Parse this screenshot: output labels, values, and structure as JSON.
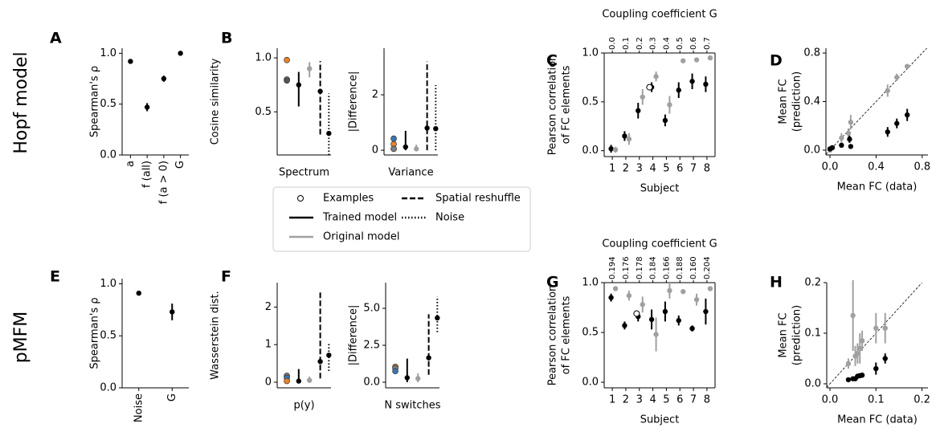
{
  "figure": {
    "row_labels": [
      "Hopf model",
      "pMFM"
    ],
    "legend": [
      {
        "label": "Examples",
        "marker": "open"
      },
      {
        "label": "Trained model",
        "color": "#000000",
        "linestyle": "solid"
      },
      {
        "label": "Original model",
        "color": "#a0a0a0",
        "linestyle": "solid"
      },
      {
        "label": "Spatial reshuffle",
        "color": "#000000",
        "linestyle": "dashed"
      },
      {
        "label": "Noise",
        "color": "#000000",
        "linestyle": "dotted"
      }
    ]
  },
  "chart_data": [
    {
      "type": "category",
      "panel": "A",
      "ylabel": "Spearman's ρ",
      "categories": [
        "a",
        "f (all)",
        "f (a > 0)",
        "G"
      ],
      "ylim": [
        0,
        1.05
      ],
      "yticks": [
        {
          "value": 0,
          "label": "0.0"
        },
        {
          "value": 0.5,
          "label": "0.5"
        },
        {
          "value": 1,
          "label": "1.0"
        }
      ],
      "series": [
        {
          "color": "#000000",
          "linestyle": "solid",
          "values": [
            0.92,
            0.47,
            0.75,
            1.0
          ],
          "errors": [
            0.01,
            0.04,
            0.03,
            0.005
          ]
        }
      ]
    },
    {
      "type": "comparison",
      "panel": "B",
      "ylabel": "Cosine similarity",
      "xlabel": "Spectrum",
      "ylim": [
        0.1,
        1.09
      ],
      "yticks": [
        {
          "value": 0.5,
          "label": "0.5"
        },
        {
          "value": 1,
          "label": "1.0"
        }
      ],
      "series": [
        {
          "marker": "filled",
          "colors": [
            "#e8822a",
            "#7f7f7f",
            "#555555"
          ],
          "values": [
            0.98,
            0.8,
            0.79
          ]
        },
        {
          "color": "#000000",
          "linestyle": "solid",
          "values": [
            0.75
          ],
          "errors": [
            [
              0.2,
              0.12
            ]
          ]
        },
        {
          "color": "#a0a0a0",
          "linestyle": "solid",
          "values": [
            0.9
          ],
          "errors": [
            [
              0.08,
              0.06
            ]
          ]
        },
        {
          "color": "#000000",
          "linestyle": "dashed",
          "values": [
            0.69
          ],
          "errors": [
            [
              0.4,
              0.28
            ]
          ]
        },
        {
          "color": "#000000",
          "linestyle": "dotted",
          "values": [
            0.3
          ],
          "errors": [
            [
              0.2,
              0.37
            ]
          ]
        }
      ]
    },
    {
      "type": "comparison",
      "ylabel": "|Difference|",
      "xlabel": "Variance",
      "ylim": [
        -0.17,
        3.68
      ],
      "yticks": [
        0,
        2
      ],
      "series": [
        {
          "marker": "filled",
          "colors": [
            "#3b75af",
            "#e8822a",
            "#7f7f7f"
          ],
          "values": [
            0.42,
            0.22,
            0.05
          ]
        },
        {
          "color": "#000000",
          "linestyle": "solid",
          "values": [
            0.12
          ],
          "errors": [
            [
              0.12,
              0.58
            ]
          ]
        },
        {
          "color": "#a0a0a0",
          "linestyle": "solid",
          "values": [
            0.05
          ],
          "errors": [
            [
              0.05,
              0.15
            ]
          ]
        },
        {
          "color": "#000000",
          "linestyle": "dashed",
          "values": [
            0.8
          ],
          "errors": [
            [
              0.8,
              2.4
            ]
          ]
        },
        {
          "color": "#000000",
          "linestyle": "dotted",
          "values": [
            0.78
          ],
          "errors": [
            [
              0.78,
              1.57
            ]
          ]
        }
      ]
    },
    {
      "type": "subject",
      "panel": "C",
      "ylabel": [
        "Pearson correlation",
        "of FC elements"
      ],
      "xlabel": "Subject",
      "top_label": "Coupling coefficient G",
      "top_categories": [
        "0.0",
        "0.1",
        "0.2",
        "0.3",
        "0.4",
        "0.5",
        "0.6",
        "0.7"
      ],
      "x": [
        1,
        2,
        3,
        4,
        5,
        6,
        7,
        8
      ],
      "xlim": [
        0.4,
        8.6
      ],
      "xticks": [
        1,
        2,
        3,
        4,
        5,
        6,
        7,
        8
      ],
      "ylim": [
        -0.06,
        1.0
      ],
      "yticks": [
        {
          "value": 0,
          "label": "0.0"
        },
        {
          "value": 0.5,
          "label": "0.5"
        },
        {
          "value": 1,
          "label": "1.0"
        }
      ],
      "series": [
        {
          "color": "#000000",
          "linestyle": "solid",
          "values": [
            0.02,
            0.15,
            0.41,
            0.65,
            0.31,
            0.62,
            0.71,
            0.68
          ],
          "errors": [
            0.04,
            0.05,
            0.08,
            0.05,
            0.06,
            0.08,
            0.08,
            0.08
          ]
        },
        {
          "color": "#a0a0a0",
          "linestyle": "solid",
          "values": [
            0.01,
            0.12,
            0.55,
            0.76,
            0.47,
            0.92,
            0.93,
            0.95
          ],
          "errors": [
            0.03,
            0.06,
            0.08,
            0.05,
            0.09,
            0.02,
            0.02,
            0.02
          ]
        },
        {
          "marker": "open",
          "x": [
            3.75
          ],
          "values": [
            0.65
          ]
        }
      ]
    },
    {
      "type": "scatter",
      "panel": "D",
      "ylabel": [
        "Mean FC",
        "(prediction)"
      ],
      "xlabel": "Mean FC (data)",
      "diagonal": true,
      "xlim": [
        -0.035,
        0.85
      ],
      "xticks": [
        {
          "value": 0,
          "label": "0.0"
        },
        0.4,
        0.8
      ],
      "ylim": [
        -0.04,
        0.84
      ],
      "yticks": [
        {
          "value": 0,
          "label": "0.0"
        },
        0.4,
        0.8
      ],
      "series": [
        {
          "color": "#a0a0a0",
          "x": [
            0.0,
            0.02,
            0.1,
            0.16,
            0.18,
            0.5,
            0.58,
            0.67
          ],
          "values": [
            0.0,
            0.02,
            0.1,
            0.14,
            0.23,
            0.49,
            0.6,
            0.69
          ],
          "errors": [
            0.005,
            0.01,
            0.04,
            0.04,
            0.06,
            0.05,
            0.03,
            0.02
          ]
        },
        {
          "color": "#000000",
          "x": [
            0.0,
            0.02,
            0.1,
            0.17,
            0.18,
            0.5,
            0.58,
            0.67
          ],
          "values": [
            0.01,
            0.02,
            0.04,
            0.09,
            0.03,
            0.15,
            0.22,
            0.29
          ],
          "errors": [
            0.005,
            0.01,
            0.02,
            0.03,
            0.015,
            0.04,
            0.04,
            0.05
          ]
        }
      ]
    },
    {
      "type": "category",
      "panel": "E",
      "ylabel": "Spearman's ρ",
      "categories": [
        "Noise",
        "G"
      ],
      "ylim": [
        0,
        1.05
      ],
      "yticks": [
        {
          "value": 0,
          "label": "0.0"
        },
        {
          "value": 0.5,
          "label": "0.5"
        },
        {
          "value": 1,
          "label": "1.0"
        }
      ],
      "series": [
        {
          "color": "#000000",
          "linestyle": "solid",
          "values": [
            0.91,
            0.73
          ],
          "errors": [
            0.01,
            0.08
          ]
        }
      ]
    },
    {
      "type": "comparison",
      "panel": "F",
      "ylabel": "Wasserstein dist.",
      "xlabel": "p(y)",
      "ylim": [
        -0.15,
        2.65
      ],
      "yticks": [
        0,
        1,
        2
      ],
      "series": [
        {
          "marker": "filled",
          "colors": [
            "#7f7f7f",
            "#3b75af",
            "#e8822a"
          ],
          "values": [
            0.17,
            0.12,
            0.03
          ]
        },
        {
          "color": "#000000",
          "linestyle": "solid",
          "values": [
            0.03
          ],
          "errors": [
            [
              0.03,
              0.32
            ]
          ]
        },
        {
          "color": "#a0a0a0",
          "linestyle": "solid",
          "values": [
            0.05
          ],
          "errors": [
            [
              0.05,
              0.1
            ]
          ]
        },
        {
          "color": "#000000",
          "linestyle": "dashed",
          "values": [
            0.55
          ],
          "errors": [
            [
              0.45,
              1.85
            ]
          ]
        },
        {
          "color": "#000000",
          "linestyle": "dotted",
          "values": [
            0.72
          ],
          "errors": [
            [
              0.42,
              0.3
            ]
          ]
        }
      ]
    },
    {
      "type": "comparison",
      "ylabel": "|Difference|",
      "xlabel": "N switches",
      "ylim": [
        -0.38,
        6.74
      ],
      "yticks": [
        {
          "value": 0,
          "label": "0.0"
        },
        2.5,
        {
          "value": 5,
          "label": "5.0"
        }
      ],
      "series": [
        {
          "marker": "filled",
          "colors": [
            "#e8822a",
            "#7f7f7f",
            "#3b75af"
          ],
          "values": [
            1.05,
            0.95,
            0.75
          ]
        },
        {
          "color": "#000000",
          "linestyle": "solid",
          "values": [
            0.3
          ],
          "errors": [
            [
              0.3,
              1.3
            ]
          ]
        },
        {
          "color": "#a0a0a0",
          "linestyle": "solid",
          "values": [
            0.25
          ],
          "errors": [
            [
              0.25,
              0.35
            ]
          ]
        },
        {
          "color": "#000000",
          "linestyle": "dashed",
          "values": [
            1.65
          ],
          "errors": [
            [
              1.15,
              2.95
            ]
          ]
        },
        {
          "color": "#000000",
          "linestyle": "dotted",
          "values": [
            4.35
          ],
          "errors": [
            [
              0.95,
              1.45
            ]
          ]
        }
      ]
    },
    {
      "type": "subject",
      "panel": "G",
      "ylabel": [
        "Pearson correlation",
        "of FC elements"
      ],
      "xlabel": "Subject",
      "top_label": "Coupling coefficient G",
      "top_categories": [
        "0.194",
        "0.176",
        "0.178",
        "0.184",
        "0.166",
        "0.188",
        "0.160",
        "0.204"
      ],
      "x": [
        1,
        2,
        3,
        4,
        5,
        6,
        7,
        8
      ],
      "xlim": [
        0.4,
        8.6
      ],
      "xticks": [
        1,
        2,
        3,
        4,
        5,
        6,
        7,
        8
      ],
      "ylim": [
        -0.056,
        1.0
      ],
      "yticks": [
        {
          "value": 0,
          "label": "0.0"
        },
        {
          "value": 0.5,
          "label": "0.5"
        },
        {
          "value": 1,
          "label": "1.0"
        }
      ],
      "series": [
        {
          "color": "#000000",
          "linestyle": "solid",
          "values": [
            0.85,
            0.57,
            0.66,
            0.63,
            0.71,
            0.62,
            0.54,
            0.71
          ],
          "errors": [
            0.04,
            0.04,
            0.05,
            0.1,
            0.1,
            0.05,
            0.03,
            0.13
          ]
        },
        {
          "color": "#a0a0a0",
          "linestyle": "solid",
          "values": [
            0.94,
            0.87,
            0.78,
            0.48,
            0.92,
            0.91,
            0.83,
            0.94
          ],
          "errors": [
            0.02,
            0.05,
            0.08,
            0.17,
            0.08,
            0.02,
            0.06,
            0.02
          ]
        },
        {
          "marker": "open",
          "x": [
            2.8
          ],
          "values": [
            0.69
          ]
        }
      ]
    },
    {
      "type": "scatter",
      "panel": "H",
      "ylabel": [
        "Mean FC",
        "(prediction)"
      ],
      "xlabel": "Mean FC (data)",
      "diagonal": true,
      "xlim": [
        -0.007,
        0.213
      ],
      "xticks": [
        {
          "value": 0,
          "label": "0.0"
        },
        0.1,
        0.2
      ],
      "ylim": [
        -0.008,
        0.2
      ],
      "yticks": [
        {
          "value": 0,
          "label": "0.0"
        },
        0.1,
        0.2
      ],
      "series": [
        {
          "color": "#a0a0a0",
          "x": [
            0.04,
            0.05,
            0.055,
            0.06,
            0.065,
            0.07,
            0.1,
            0.12
          ],
          "values": [
            0.04,
            0.135,
            0.055,
            0.06,
            0.07,
            0.085,
            0.11,
            0.11
          ],
          "errors": [
            0.01,
            0.07,
            0.02,
            0.02,
            0.03,
            0.02,
            0.03,
            0.03
          ]
        },
        {
          "color": "#000000",
          "x": [
            0.04,
            0.05,
            0.055,
            0.06,
            0.065,
            0.07,
            0.1,
            0.12
          ],
          "values": [
            0.008,
            0.01,
            0.01,
            0.015,
            0.016,
            0.017,
            0.03,
            0.05
          ],
          "errors": [
            0.003,
            0.004,
            0.004,
            0.005,
            0.005,
            0.005,
            0.012,
            0.01
          ]
        }
      ]
    }
  ]
}
